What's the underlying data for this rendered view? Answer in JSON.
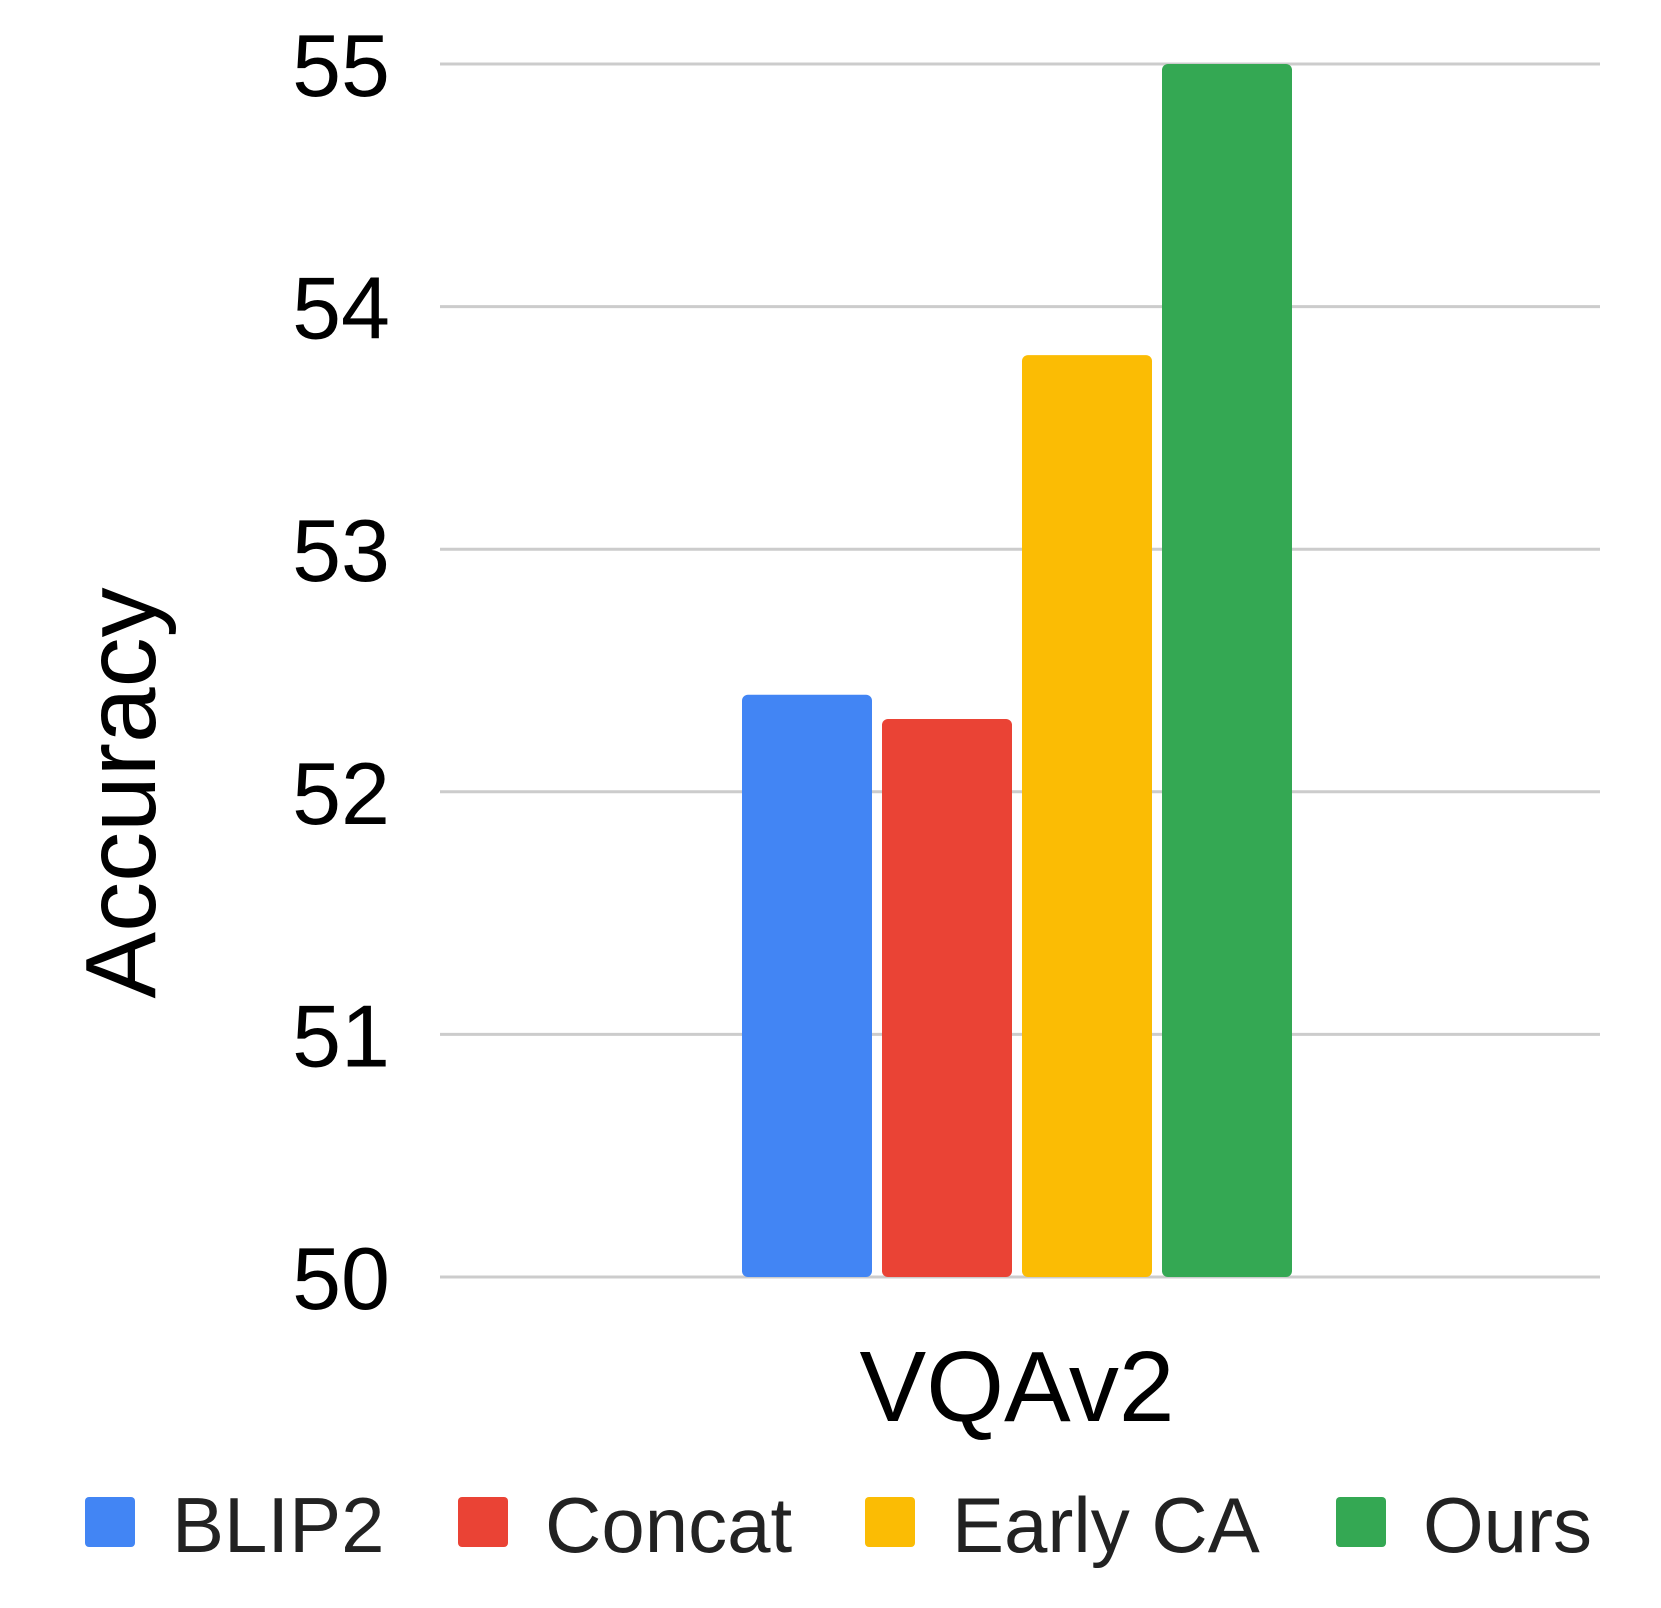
{
  "chart_data": {
    "type": "bar",
    "title": "",
    "xlabel": "",
    "ylabel": "Accuracy",
    "categories": [
      "VQAv2"
    ],
    "ylim": [
      50,
      55
    ],
    "yticks": [
      "50",
      "51",
      "52",
      "53",
      "54",
      "55"
    ],
    "grid": true,
    "legend_position": "bottom",
    "series": [
      {
        "name": "BLIP2",
        "values": [
          52.4
        ],
        "color": "#4285F4"
      },
      {
        "name": "Concat",
        "values": [
          52.3
        ],
        "color": "#EA4335"
      },
      {
        "name": "Early CA",
        "values": [
          53.8
        ],
        "color": "#FBBC04"
      },
      {
        "name": "Ours",
        "values": [
          55.0
        ],
        "color": "#34A853"
      }
    ]
  }
}
